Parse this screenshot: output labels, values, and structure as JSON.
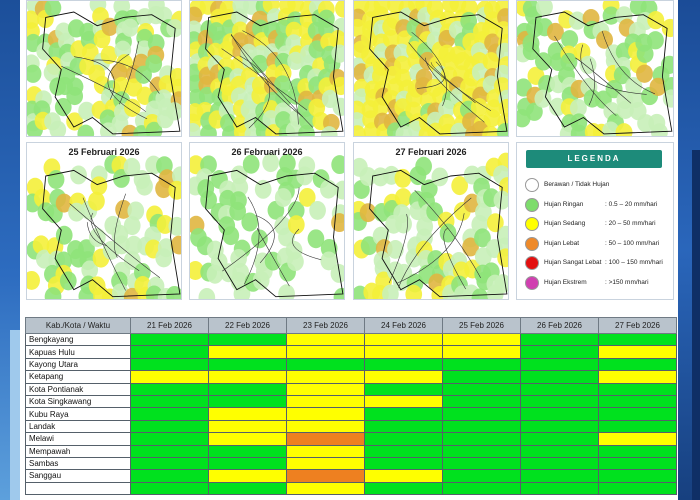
{
  "maps_top": [
    {
      "title": ""
    },
    {
      "title": ""
    },
    {
      "title": ""
    },
    {
      "title": ""
    }
  ],
  "maps_bottom": [
    {
      "title": "25 Februari 2026"
    },
    {
      "title": "26 Februari 2026"
    },
    {
      "title": "27 Februari 2026"
    }
  ],
  "legend": {
    "title": "LEGENDA",
    "items": [
      {
        "label": "Berawan / Tidak Hujan",
        "range": "",
        "color": "#ffffff"
      },
      {
        "label": "Hujan Ringan",
        "range": ": 0.5 – 20 mm/hari",
        "color": "#7ddc6c"
      },
      {
        "label": "Hujan Sedang",
        "range": ": 20 – 50 mm/hari",
        "color": "#ffff00"
      },
      {
        "label": "Hujan Lebat",
        "range": ": 50 – 100 mm/hari",
        "color": "#ee8a2a"
      },
      {
        "label": "Hujan Sangat Lebat",
        "range": ": 100 – 150 mm/hari",
        "color": "#e31010"
      },
      {
        "label": "Hujan Ekstrem",
        "range": ": >150 mm/hari",
        "color": "#d040b0"
      }
    ]
  },
  "table": {
    "header_first": "Kab./Kota / Waktu",
    "dates": [
      "21 Feb 2026",
      "22 Feb 2026",
      "23 Feb 2026",
      "24 Feb 2026",
      "25 Feb 2026",
      "26 Feb 2026",
      "27 Feb 2026"
    ],
    "rows": [
      {
        "name": "Bengkayang",
        "cells": [
          "green",
          "green",
          "yellow",
          "yellow",
          "yellow",
          "green",
          "green"
        ]
      },
      {
        "name": "Kapuas Hulu",
        "cells": [
          "green",
          "yellow",
          "yellow",
          "yellow",
          "yellow",
          "green",
          "yellow"
        ]
      },
      {
        "name": "Kayong Utara",
        "cells": [
          "green",
          "green",
          "green",
          "green",
          "green",
          "green",
          "green"
        ]
      },
      {
        "name": "Ketapang",
        "cells": [
          "yellow",
          "yellow",
          "yellow",
          "yellow",
          "green",
          "green",
          "yellow"
        ]
      },
      {
        "name": "Kota Pontianak",
        "cells": [
          "green",
          "green",
          "yellow",
          "green",
          "green",
          "green",
          "green"
        ]
      },
      {
        "name": "Kota Singkawang",
        "cells": [
          "green",
          "green",
          "yellow",
          "yellow",
          "green",
          "green",
          "green"
        ]
      },
      {
        "name": "Kubu Raya",
        "cells": [
          "green",
          "yellow",
          "yellow",
          "green",
          "green",
          "green",
          "green"
        ]
      },
      {
        "name": "Landak",
        "cells": [
          "green",
          "yellow",
          "yellow",
          "green",
          "green",
          "green",
          "green"
        ]
      },
      {
        "name": "Melawi",
        "cells": [
          "green",
          "yellow",
          "orange",
          "green",
          "green",
          "green",
          "yellow"
        ]
      },
      {
        "name": "Mempawah",
        "cells": [
          "green",
          "green",
          "yellow",
          "green",
          "green",
          "green",
          "green"
        ]
      },
      {
        "name": "Sambas",
        "cells": [
          "green",
          "green",
          "yellow",
          "green",
          "green",
          "green",
          "green"
        ]
      },
      {
        "name": "Sanggau",
        "cells": [
          "green",
          "yellow",
          "orange",
          "yellow",
          "green",
          "green",
          "green"
        ]
      },
      {
        "name": "",
        "cells": [
          "green",
          "green",
          "yellow",
          "green",
          "green",
          "green",
          "green"
        ]
      }
    ]
  }
}
